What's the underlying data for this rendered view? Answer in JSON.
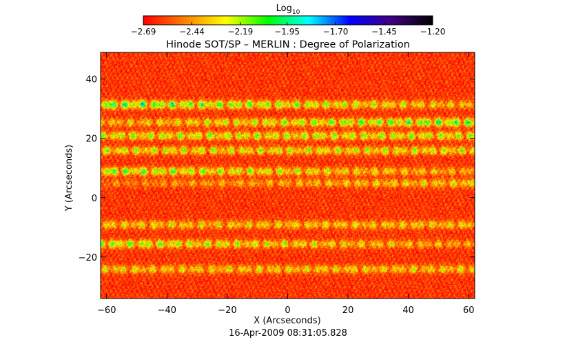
{
  "chart_data": {
    "type": "heatmap",
    "title": "Hinode SOT/SP – MERLIN : Degree of Polarization",
    "xlabel": "X (Arcseconds)",
    "ylabel": "Y (Arcseconds)",
    "xlim": [
      -62,
      62
    ],
    "ylim": [
      -34,
      49
    ],
    "x_ticks": [
      -60,
      -40,
      -20,
      0,
      20,
      40,
      60
    ],
    "y_ticks": [
      -20,
      0,
      20,
      40
    ],
    "x_tick_labels": [
      "−60",
      "−40",
      "−20",
      "0",
      "20",
      "40",
      "60"
    ],
    "y_tick_labels": [
      "−20",
      "0",
      "20",
      "40"
    ],
    "grid": false,
    "timestamp": "16-Apr-2009 08:31:05.828",
    "colorbar": {
      "label_base": "Log",
      "label_sub": "10",
      "range": [
        -2.69,
        -1.2
      ],
      "tick_values": [
        -2.69,
        -2.44,
        -2.19,
        -1.95,
        -1.7,
        -1.45,
        -1.2
      ],
      "tick_labels": [
        "−2.69",
        "−2.44",
        "−2.19",
        "−1.95",
        "−1.70",
        "−1.45",
        "−1.20"
      ],
      "colormap": [
        "#ff0000",
        "#ff8000",
        "#ffff00",
        "#00ff00",
        "#00ffff",
        "#0000ff",
        "#400080",
        "#000000"
      ]
    },
    "background_value": -2.6,
    "features": [
      {
        "x_range": [
          -62,
          62
        ],
        "y": 31.5,
        "value": -1.75,
        "x_fade": "left"
      },
      {
        "x_range": [
          -62,
          62
        ],
        "y": 25.5,
        "value": -1.8,
        "x_fade": "right"
      },
      {
        "x_range": [
          -62,
          62
        ],
        "y": 21.0,
        "value": -2.05,
        "x_fade": "none"
      },
      {
        "x_range": [
          -62,
          62
        ],
        "y": 16.0,
        "value": -2.1,
        "x_fade": "none"
      },
      {
        "x_range": [
          -62,
          62
        ],
        "y": 9.0,
        "value": -1.9,
        "x_fade": "left"
      },
      {
        "x_range": [
          -62,
          62
        ],
        "y": 5.0,
        "value": -2.15,
        "x_fade": "right"
      },
      {
        "x_range": [
          -62,
          62
        ],
        "y": -9.0,
        "value": -2.2,
        "x_fade": "none"
      },
      {
        "x_range": [
          -62,
          62
        ],
        "y": -15.5,
        "value": -1.95,
        "x_fade": "left"
      },
      {
        "x_range": [
          -62,
          62
        ],
        "y": -24.0,
        "value": -2.2,
        "x_fade": "none"
      }
    ]
  }
}
